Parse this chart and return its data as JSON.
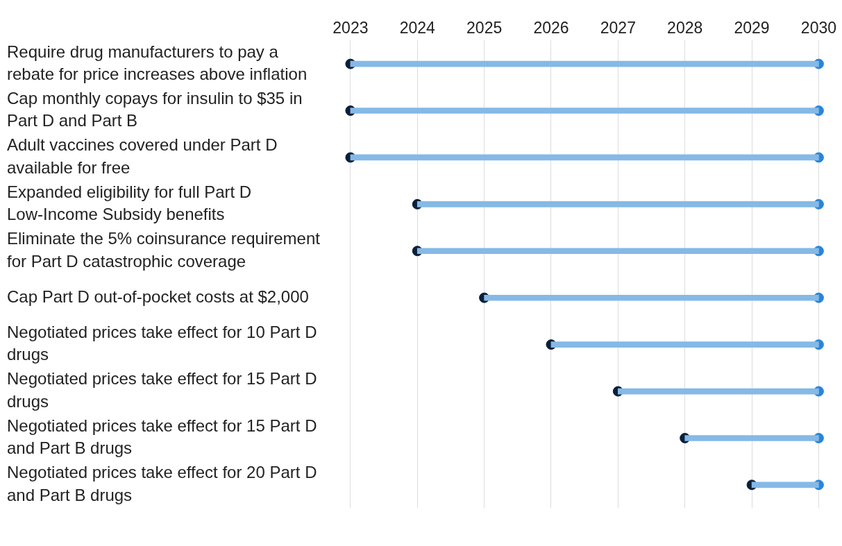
{
  "chart_data": {
    "type": "bar",
    "orientation": "horizontal",
    "categories": [
      "Require drug manufacturers to pay a rebate for price increases above inflation",
      "Cap monthly copays for insulin to $35 in Part D and Part B",
      "Adult vaccines covered under Part D available for free",
      "Expanded eligibility for full Part D Low-Income Subsidy benefits",
      "Eliminate the 5% coinsurance requirement for Part D catastrophic coverage",
      "Cap Part D out-of-pocket costs at $2,000",
      "Negotiated prices take effect for 10 Part D drugs",
      "Negotiated prices take effect for 15 Part D drugs",
      "Negotiated prices take effect for 15 Part D and Part B drugs",
      "Negotiated prices take effect for 20 Part D and Part B drugs"
    ],
    "series": [
      {
        "color": "#85b9e6",
        "base": [
          2023,
          2023,
          2023,
          2024,
          2024,
          2025,
          2026,
          2027,
          2028,
          2029
        ],
        "values": [
          7,
          7,
          7,
          6,
          6,
          5,
          4,
          3,
          2,
          1
        ]
      },
      {
        "type": "scatter",
        "color": "#0b1f3a",
        "values": [
          2023,
          2023,
          2023,
          2024,
          2024,
          2025,
          2026,
          2027,
          2028,
          2029
        ]
      },
      {
        "type": "scatter",
        "color": "#2a85d8",
        "values": [
          2030,
          2030,
          2030,
          2030,
          2030,
          2030,
          2030,
          2030,
          2030,
          2030
        ]
      }
    ],
    "xlim": [
      2023,
      2030
    ],
    "xticks": [
      2023,
      2024,
      2025,
      2026,
      2027,
      2028,
      2029,
      2030
    ],
    "grid": "x",
    "marker": "circle",
    "legend": false
  }
}
